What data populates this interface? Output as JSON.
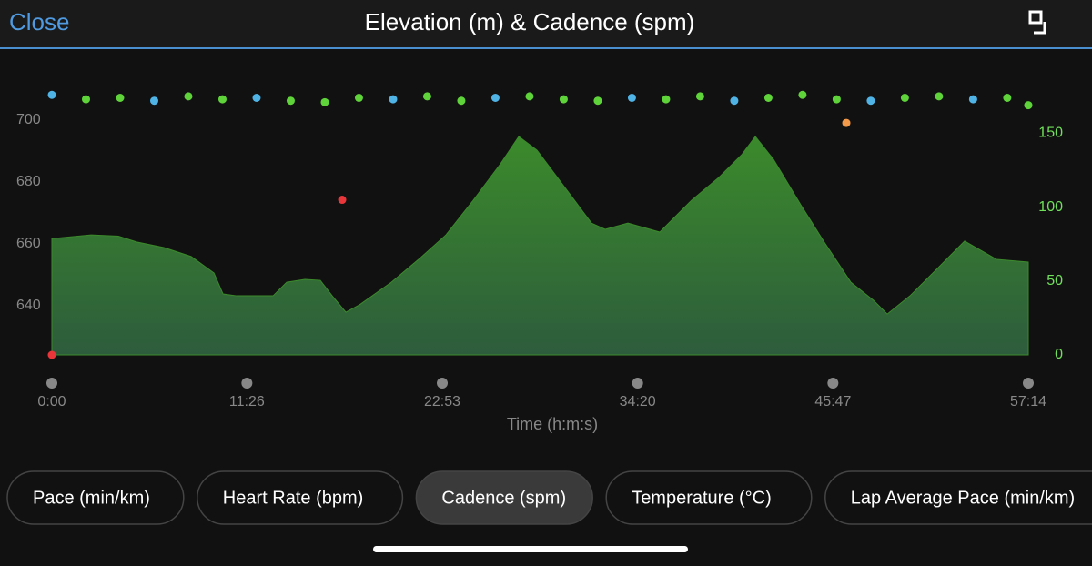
{
  "header": {
    "close": "Close"
  },
  "chart_data": {
    "type": "combo",
    "title": "Elevation (m) & Cadence (spm)",
    "x_label": "Time (h:m:s)",
    "xlim": [
      0,
      3434
    ],
    "xticks": [
      {
        "value": 0,
        "label": "0:00"
      },
      {
        "value": 686,
        "label": "11:26"
      },
      {
        "value": 1373,
        "label": "22:53"
      },
      {
        "value": 2060,
        "label": "34:20"
      },
      {
        "value": 2747,
        "label": "45:47"
      },
      {
        "value": 3434,
        "label": "57:14"
      }
    ],
    "ylim": [
      624,
      709
    ],
    "yticks": [
      640,
      660,
      680,
      700
    ],
    "y2lim": [
      0,
      178
    ],
    "y2ticks": [
      0,
      50,
      100,
      150
    ],
    "series": [
      {
        "type": "area",
        "color": "#3b8a2b",
        "x": [
          0,
          138,
          234,
          298,
          394,
          490,
          570,
          602,
          650,
          778,
          826,
          890,
          944,
          986,
          1034,
          1082,
          1194,
          1290,
          1386,
          1482,
          1578,
          1642,
          1706,
          1802,
          1898,
          1946,
          2026,
          2138,
          2250,
          2346,
          2426,
          2474,
          2538,
          2634,
          2714,
          2810,
          2890,
          2938,
          3018,
          3114,
          3210,
          3322,
          3434
        ],
        "values": [
          661.6,
          662.8,
          662.4,
          660.5,
          658.7,
          655.8,
          650.5,
          643.7,
          643.1,
          643.1,
          647.5,
          648.4,
          648.1,
          643.1,
          637.8,
          640.2,
          647.5,
          654.9,
          662.8,
          674,
          685.8,
          694.6,
          690.2,
          678.4,
          666.6,
          664.6,
          666.6,
          663.7,
          674,
          681.4,
          688.7,
          694.6,
          687.2,
          672.5,
          660.8,
          647.5,
          641.6,
          637.2,
          643.1,
          651.9,
          660.8,
          654.9,
          654
        ]
      },
      {
        "type": "scatter",
        "axis": "y2",
        "x": [
          0,
          120,
          240,
          360,
          480,
          600,
          720,
          840,
          960,
          1080,
          1200,
          1320,
          1440,
          1560,
          1680,
          1800,
          1920,
          2040,
          2160,
          2280,
          2400,
          2520,
          2640,
          2760,
          2880,
          3000,
          3120,
          3240,
          3360,
          3434,
          1021,
          2794,
          0
        ],
        "values": [
          176,
          173,
          174,
          172,
          175,
          173,
          174,
          172,
          171,
          174,
          173,
          175,
          172,
          174,
          175,
          173,
          172,
          174,
          173,
          175,
          172,
          174,
          176,
          173,
          172,
          174,
          175,
          173,
          174,
          169,
          105,
          157,
          0
        ],
        "colors": [
          "#4fb3e6",
          "#5fd33a",
          "#5fd33a",
          "#4fb3e6",
          "#5fd33a",
          "#5fd33a",
          "#4fb3e6",
          "#5fd33a",
          "#5fd33a",
          "#5fd33a",
          "#4fb3e6",
          "#5fd33a",
          "#5fd33a",
          "#4fb3e6",
          "#5fd33a",
          "#5fd33a",
          "#5fd33a",
          "#4fb3e6",
          "#5fd33a",
          "#5fd33a",
          "#4fb3e6",
          "#5fd33a",
          "#5fd33a",
          "#5fd33a",
          "#4fb3e6",
          "#5fd33a",
          "#5fd33a",
          "#4fb3e6",
          "#5fd33a",
          "#5fd33a",
          "#e8363a",
          "#f29a4a",
          "#e8363a"
        ]
      }
    ]
  },
  "tabs": [
    "Pace (min/km)",
    "Heart Rate (bpm)",
    "Cadence (spm)",
    "Temperature (°C)",
    "Lap Average Pace (min/km)"
  ],
  "active_tab": 2
}
